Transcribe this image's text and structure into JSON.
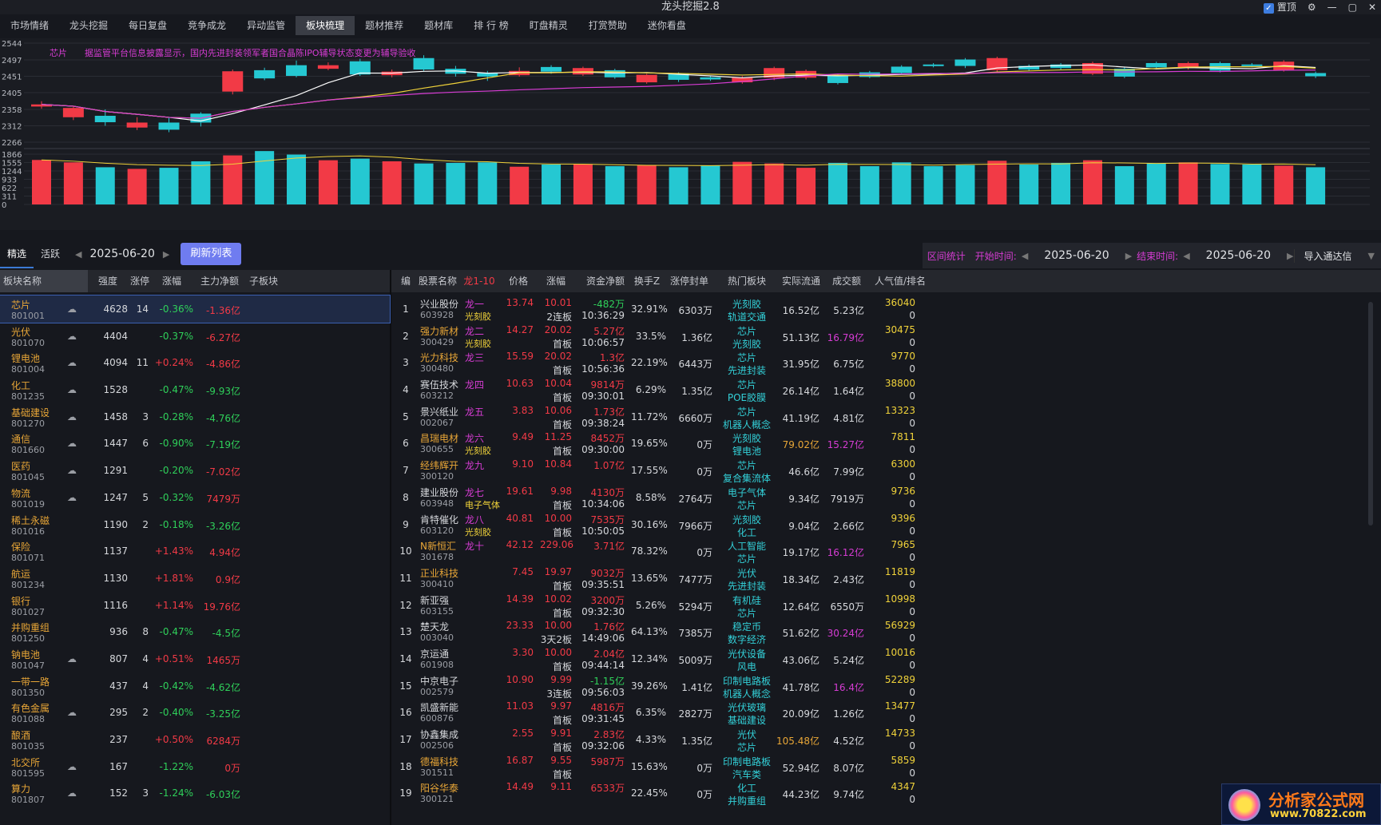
{
  "app": {
    "title": "龙头挖掘2.8",
    "pin_label": "置顶"
  },
  "menu": [
    "市场情绪",
    "龙头挖掘",
    "每日复盘",
    "竞争成龙",
    "异动监管",
    "板块梳理",
    "题材推荐",
    "题材库",
    "排 行 榜",
    "盯盘精灵",
    "打赏赞助",
    "迷你看盘"
  ],
  "menu_active": 5,
  "kline": {
    "price_ticks": [
      "2544",
      "2497",
      "2451",
      "2405",
      "2358",
      "2312",
      "2266"
    ],
    "vol_ticks": [
      "1866",
      "1555",
      "1244",
      "933",
      "622",
      "311",
      "0"
    ],
    "sector_label": "芯片",
    "news": "据监管平台信息披露显示，国内先进封装领军者国合晶陈IPO辅导状态变更为辅导验收",
    "candles": [
      [
        2366,
        2372,
        2360,
        2381
      ],
      [
        2336,
        2362,
        2328,
        2368
      ],
      [
        2340,
        2322,
        2312,
        2358
      ],
      [
        2307,
        2321,
        2300,
        2336
      ],
      [
        2321,
        2301,
        2294,
        2334
      ],
      [
        2346,
        2321,
        2310,
        2350
      ],
      [
        2408,
        2465,
        2400,
        2470
      ],
      [
        2468,
        2445,
        2440,
        2475
      ],
      [
        2482,
        2452,
        2448,
        2495
      ],
      [
        2472,
        2482,
        2468,
        2490
      ],
      [
        2493,
        2456,
        2452,
        2500
      ],
      [
        2454,
        2464,
        2448,
        2470
      ],
      [
        2502,
        2470,
        2466,
        2510
      ],
      [
        2472,
        2458,
        2450,
        2480
      ],
      [
        2460,
        2450,
        2438,
        2466
      ],
      [
        2454,
        2466,
        2450,
        2476
      ],
      [
        2477,
        2464,
        2458,
        2482
      ],
      [
        2456,
        2474,
        2452,
        2478
      ],
      [
        2468,
        2448,
        2444,
        2472
      ],
      [
        2434,
        2455,
        2430,
        2458
      ],
      [
        2458,
        2441,
        2435,
        2462
      ],
      [
        2448,
        2442,
        2438,
        2452
      ],
      [
        2434,
        2447,
        2430,
        2452
      ],
      [
        2447,
        2474,
        2440,
        2478
      ],
      [
        2447,
        2466,
        2442,
        2470
      ],
      [
        2452,
        2432,
        2428,
        2458
      ],
      [
        2462,
        2449,
        2446,
        2466
      ],
      [
        2478,
        2460,
        2456,
        2482
      ],
      [
        2484,
        2480,
        2476,
        2488
      ],
      [
        2498,
        2480,
        2474,
        2502
      ],
      [
        2468,
        2502,
        2464,
        2506
      ],
      [
        2480,
        2470,
        2466,
        2484
      ],
      [
        2484,
        2474,
        2470,
        2488
      ],
      [
        2458,
        2488,
        2454,
        2492
      ],
      [
        2472,
        2450,
        2446,
        2476
      ],
      [
        2488,
        2476,
        2472,
        2492
      ],
      [
        2475,
        2488,
        2470,
        2492
      ],
      [
        2488,
        2467,
        2462,
        2492
      ],
      [
        2484,
        2480,
        2476,
        2488
      ],
      [
        2468,
        2492,
        2464,
        2496
      ],
      [
        2460,
        2451,
        2446,
        2464
      ]
    ],
    "volumes": [
      1650,
      1560,
      1380,
      1320,
      1360,
      1600,
      1820,
      1980,
      1850,
      1640,
      1700,
      1600,
      1520,
      1540,
      1560,
      1400,
      1480,
      1500,
      1420,
      1460,
      1380,
      1440,
      1580,
      1520,
      1360,
      1540,
      1420,
      1560,
      1420,
      1460,
      1620,
      1480,
      1540,
      1640,
      1420,
      1520,
      1560,
      1500,
      1480,
      1440,
      1380
    ]
  },
  "left": {
    "tabs": [
      "精选",
      "活跃"
    ],
    "date": "2025-06-20",
    "refresh": "刷新列表",
    "headers": [
      "板块名称",
      "强度",
      "涨停",
      "涨幅",
      "主力净额",
      "子板块"
    ],
    "rows": [
      [
        "芯片",
        "801001",
        "☁",
        "4628",
        "14",
        "-0.36%",
        "g",
        "-1.36亿",
        "r"
      ],
      [
        "光伏",
        "801070",
        "☁",
        "4404",
        "",
        "-0.37%",
        "g",
        "-6.27亿",
        "r"
      ],
      [
        "锂电池",
        "801004",
        "☁",
        "4094",
        "11",
        "+0.24%",
        "r",
        "-4.86亿",
        "r"
      ],
      [
        "化工",
        "801235",
        "☁",
        "1528",
        "",
        "-0.47%",
        "g",
        "-9.93亿",
        "g"
      ],
      [
        "基础建设",
        "801270",
        "☁",
        "1458",
        "3",
        "-0.28%",
        "g",
        "-4.76亿",
        "g"
      ],
      [
        "通信",
        "801660",
        "☁",
        "1447",
        "6",
        "-0.90%",
        "g",
        "-7.19亿",
        "g"
      ],
      [
        "医药",
        "801045",
        "☁",
        "1291",
        "",
        "-0.20%",
        "g",
        "-7.02亿",
        "r"
      ],
      [
        "物流",
        "801019",
        "☁",
        "1247",
        "5",
        "-0.32%",
        "g",
        "7479万",
        "r"
      ],
      [
        "稀土永磁",
        "801016",
        "",
        "1190",
        "2",
        "-0.18%",
        "g",
        "-3.26亿",
        "g"
      ],
      [
        "保险",
        "801071",
        "",
        "1137",
        "",
        "+1.43%",
        "r",
        "4.94亿",
        "r"
      ],
      [
        "航运",
        "801234",
        "",
        "1130",
        "",
        "+1.81%",
        "r",
        "0.9亿",
        "r"
      ],
      [
        "银行",
        "801027",
        "",
        "1116",
        "",
        "+1.14%",
        "r",
        "19.76亿",
        "r"
      ],
      [
        "并购重组",
        "801250",
        "",
        "936",
        "8",
        "-0.47%",
        "g",
        "-4.5亿",
        "g"
      ],
      [
        "钠电池",
        "801047",
        "☁",
        "807",
        "4",
        "+0.51%",
        "r",
        "1465万",
        "r"
      ],
      [
        "一带一路",
        "801350",
        "",
        "437",
        "4",
        "-0.42%",
        "g",
        "-4.62亿",
        "g"
      ],
      [
        "有色金属",
        "801088",
        "☁",
        "295",
        "2",
        "-0.40%",
        "g",
        "-3.25亿",
        "g"
      ],
      [
        "酿酒",
        "801035",
        "",
        "237",
        "",
        "+0.50%",
        "r",
        "6284万",
        "r"
      ],
      [
        "北交所",
        "801595",
        "☁",
        "167",
        "",
        "-1.22%",
        "g",
        "0万",
        "r"
      ],
      [
        "算力",
        "801807",
        "☁",
        "152",
        "3",
        "-1.24%",
        "g",
        "-6.03亿",
        "g"
      ]
    ]
  },
  "right": {
    "stat_label": "区间统计",
    "start_label": "开始时间:",
    "start_date": "2025-06-20",
    "end_label": "结束时间:",
    "end_date": "2025-06-20",
    "import_btn": "导入通达信",
    "headers": [
      "编",
      "股票名称",
      "龙1-10",
      "价格",
      "涨幅",
      "资金净额",
      "换手Z",
      "涨停封单",
      "热门板块",
      "实际流通",
      "成交额",
      "人气值/排名"
    ],
    "rows": [
      [
        "1",
        "兴业股份",
        "603928",
        "龙一",
        "光刻胶",
        "13.74",
        "10.01",
        "2连板",
        "-482万",
        "10:36:29",
        "32.91%",
        "6303万",
        "光刻胶",
        "轨道交通",
        "16.52亿",
        "5.23亿",
        "36040",
        "0",
        "w",
        "w",
        "w",
        "g"
      ],
      [
        "2",
        "强力新材",
        "300429",
        "龙二",
        "光刻胶",
        "14.27",
        "20.02",
        "首板",
        "5.27亿",
        "10:06:57",
        "33.5%",
        "1.36亿",
        "芯片",
        "光刻胶",
        "51.13亿",
        "16.79亿",
        "30475",
        "0",
        "o",
        "w",
        "m",
        "r"
      ],
      [
        "3",
        "光力科技",
        "300480",
        "龙三",
        "",
        "15.59",
        "20.02",
        "首板",
        "1.3亿",
        "10:56:36",
        "22.19%",
        "6443万",
        "芯片",
        "先进封装",
        "31.95亿",
        "6.75亿",
        "9770",
        "0",
        "o",
        "w",
        "w",
        "r"
      ],
      [
        "4",
        "赛伍技术",
        "603212",
        "龙四",
        "",
        "10.63",
        "10.04",
        "首板",
        "9814万",
        "09:30:01",
        "6.29%",
        "1.35亿",
        "芯片",
        "POE胶膜",
        "26.14亿",
        "1.64亿",
        "38800",
        "0",
        "w",
        "w",
        "w",
        "r"
      ],
      [
        "5",
        "景兴纸业",
        "002067",
        "龙五",
        "",
        "3.83",
        "10.06",
        "首板",
        "1.73亿",
        "09:38:24",
        "11.72%",
        "6660万",
        "芯片",
        "机器人概念",
        "41.19亿",
        "4.81亿",
        "13323",
        "0",
        "w",
        "w",
        "w",
        "r"
      ],
      [
        "6",
        "昌瑞电材",
        "300655",
        "龙六",
        "光刻胶",
        "9.49",
        "11.25",
        "首板",
        "8452万",
        "09:30:00",
        "19.65%",
        "0万",
        "光刻胶",
        "锂电池",
        "79.02亿",
        "15.27亿",
        "7811",
        "0",
        "o",
        "o",
        "m",
        "r"
      ],
      [
        "7",
        "经纬辉开",
        "300120",
        "龙九",
        "",
        "9.10",
        "10.84",
        "",
        "1.07亿",
        "",
        "17.55%",
        "0万",
        "芯片",
        "复合集流体",
        "46.6亿",
        "7.99亿",
        "6300",
        "0",
        "o",
        "w",
        "w",
        "r"
      ],
      [
        "8",
        "建业股份",
        "603948",
        "龙七",
        "电子气体",
        "19.61",
        "9.98",
        "首板",
        "4130万",
        "10:34:06",
        "8.58%",
        "2764万",
        "电子气体",
        "芯片",
        "9.34亿",
        "7919万",
        "9736",
        "0",
        "w",
        "w",
        "w",
        "r"
      ],
      [
        "9",
        "肯特催化",
        "603120",
        "龙八",
        "光刻胶",
        "40.81",
        "10.00",
        "首板",
        "7535万",
        "10:50:05",
        "30.16%",
        "7966万",
        "光刻胶",
        "化工",
        "9.04亿",
        "2.66亿",
        "9396",
        "0",
        "w",
        "w",
        "w",
        "r"
      ],
      [
        "10",
        "N新恒汇",
        "301678",
        "龙十",
        "",
        "42.12",
        "229.06",
        "",
        "3.71亿",
        "",
        "78.32%",
        "0万",
        "人工智能",
        "芯片",
        "19.17亿",
        "16.12亿",
        "7965",
        "0",
        "o",
        "w",
        "m",
        "r"
      ],
      [
        "11",
        "正业科技",
        "300410",
        "",
        "",
        "7.45",
        "19.97",
        "首板",
        "9032万",
        "09:35:51",
        "13.65%",
        "7477万",
        "光伏",
        "先进封装",
        "18.34亿",
        "2.43亿",
        "11819",
        "0",
        "o",
        "w",
        "w",
        "r"
      ],
      [
        "12",
        "新亚强",
        "603155",
        "",
        "",
        "14.39",
        "10.02",
        "首板",
        "3200万",
        "09:32:30",
        "5.26%",
        "5294万",
        "有机硅",
        "芯片",
        "12.64亿",
        "6550万",
        "10998",
        "0",
        "w",
        "w",
        "w",
        "r"
      ],
      [
        "13",
        "楚天龙",
        "003040",
        "",
        "",
        "23.33",
        "10.00",
        "3天2板",
        "1.76亿",
        "14:49:06",
        "64.13%",
        "7385万",
        "稳定币",
        "数字经济",
        "51.62亿",
        "30.24亿",
        "56929",
        "0",
        "w",
        "w",
        "m",
        "r"
      ],
      [
        "14",
        "京运通",
        "601908",
        "",
        "",
        "3.30",
        "10.00",
        "首板",
        "2.04亿",
        "09:44:14",
        "12.34%",
        "5009万",
        "光伏设备",
        "风电",
        "43.06亿",
        "5.24亿",
        "10016",
        "0",
        "w",
        "w",
        "w",
        "r"
      ],
      [
        "15",
        "中京电子",
        "002579",
        "",
        "",
        "10.90",
        "9.99",
        "3连板",
        "-1.15亿",
        "09:56:03",
        "39.26%",
        "1.41亿",
        "印制电路板",
        "机器人概念",
        "41.78亿",
        "16.4亿",
        "52289",
        "0",
        "w",
        "w",
        "m",
        "g"
      ],
      [
        "16",
        "凯盛新能",
        "600876",
        "",
        "",
        "11.03",
        "9.97",
        "首板",
        "4816万",
        "09:31:45",
        "6.35%",
        "2827万",
        "光伏玻璃",
        "基础建设",
        "20.09亿",
        "1.26亿",
        "13477",
        "0",
        "w",
        "w",
        "w",
        "r"
      ],
      [
        "17",
        "协鑫集成",
        "002506",
        "",
        "",
        "2.55",
        "9.91",
        "首板",
        "2.83亿",
        "09:32:06",
        "4.33%",
        "1.35亿",
        "光伏",
        "芯片",
        "105.48亿",
        "4.52亿",
        "14733",
        "0",
        "w",
        "o",
        "w",
        "r"
      ],
      [
        "18",
        "德福科技",
        "301511",
        "",
        "",
        "16.87",
        "9.55",
        "首板",
        "5987万",
        "",
        "15.63%",
        "0万",
        "印制电路板",
        "汽车类",
        "52.94亿",
        "8.07亿",
        "5859",
        "0",
        "o",
        "w",
        "w",
        "r"
      ],
      [
        "19",
        "阳谷华泰",
        "300121",
        "",
        "",
        "14.49",
        "9.11",
        "",
        "6533万",
        "",
        "22.45%",
        "0万",
        "化工",
        "并购重组",
        "44.23亿",
        "9.74亿",
        "4347",
        "0",
        "o",
        "w",
        "w",
        "r"
      ]
    ]
  },
  "watermark": {
    "line1": "分析家公式网",
    "line2": "www.70822.com"
  },
  "colors": {
    "up": "#f23a46",
    "down": "#2fd05a",
    "accent": "#d63cd3",
    "refresh": "#6f7cf0"
  }
}
